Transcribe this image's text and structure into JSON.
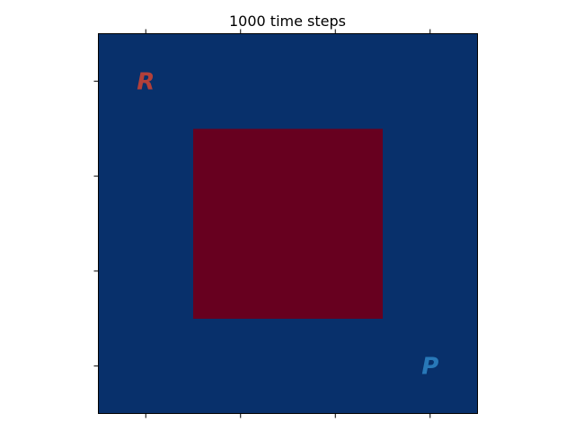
{
  "chart_data": {
    "type": "heatmap",
    "title": "1000 time steps",
    "xlabel": "",
    "ylabel": "",
    "grid_size": [
      4,
      4
    ],
    "xlim": [
      -0.5,
      3.5
    ],
    "ylim": [
      3.5,
      -0.5
    ],
    "x_ticks": [
      0,
      1,
      2,
      3
    ],
    "y_ticks": [
      0,
      1,
      2,
      3
    ],
    "show_tick_labels": false,
    "grid": false,
    "values": [
      [
        0,
        0,
        0,
        0
      ],
      [
        0,
        1,
        1,
        0
      ],
      [
        0,
        1,
        1,
        0
      ],
      [
        0,
        0,
        0,
        0
      ]
    ],
    "highlight_region": {
      "x0": 0.5,
      "x1": 1.5,
      "y0": 0.5,
      "y1": 1.5
    },
    "colormap": {
      "low": "#08306b",
      "high": "#67001f"
    },
    "annotations": [
      {
        "text": "R",
        "x": 0,
        "y": 0,
        "color": "#b2403a"
      },
      {
        "text": "P",
        "x": 3,
        "y": 3,
        "color": "#2878b8"
      }
    ]
  }
}
